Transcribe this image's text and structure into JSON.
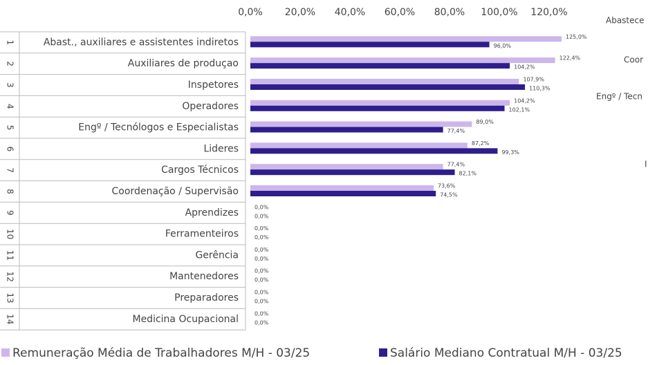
{
  "chart_data": {
    "type": "bar",
    "orientation": "horizontal",
    "row_numbers": [
      1,
      2,
      3,
      4,
      5,
      6,
      7,
      8,
      9,
      10,
      11,
      12,
      13,
      14
    ],
    "categories": [
      "Abast., auxiliares e assistentes indiretos",
      "Auxiliares de produçao",
      "Inspetores",
      "Operadores",
      "Engº / Tecnólogos e Especialistas",
      "Lideres",
      "Cargos Técnicos",
      "Coordenação / Supervisão",
      "Aprendizes",
      "Ferramenteiros",
      "Gerência",
      "Mantenedores",
      "Preparadores",
      "Medicina Ocupacional"
    ],
    "series": [
      {
        "name": "Remuneração Média de Trabalhadores M/H - 03/25",
        "color": "#cdb6ea",
        "values": [
          125.0,
          122.4,
          107.9,
          104.2,
          89.0,
          87.2,
          77.4,
          73.6,
          0,
          0,
          0,
          0,
          0,
          0
        ],
        "value_labels": [
          "125,0%",
          "122,4%",
          "107,9%",
          "104,2%",
          "89,0%",
          "87,2%",
          "77,4%",
          "73,6%",
          "0,0%",
          "0,0%",
          "0,0%",
          "0,0%",
          "0,0%",
          "0,0%"
        ]
      },
      {
        "name": "Salário Mediano Contratual M/H - 03/25",
        "color": "#2e1d8c",
        "values": [
          96.0,
          104.2,
          110.3,
          102.1,
          77.4,
          99.3,
          82.1,
          74.5,
          0,
          0,
          0,
          0,
          0,
          0
        ],
        "value_labels": [
          "96,0%",
          "104,2%",
          "110,3%",
          "102,1%",
          "77,4%",
          "99,3%",
          "82,1%",
          "74,5%",
          "0,0%",
          "0,0%",
          "0,0%",
          "0,0%",
          "0,0%",
          "0,0%"
        ]
      }
    ],
    "xlim": [
      0,
      140
    ],
    "xticks": [
      {
        "value": 0,
        "label": "0,0%"
      },
      {
        "value": 20,
        "label": "20,0%"
      },
      {
        "value": 40,
        "label": "40,0%"
      },
      {
        "value": 60,
        "label": "60,0%"
      },
      {
        "value": 80,
        "label": "80,0%"
      },
      {
        "value": 100,
        "label": "100,0%"
      },
      {
        "value": 120,
        "label": "120,0%"
      }
    ],
    "clipped_texts": [
      "Abastece",
      "Coor",
      "Engº / Tecn",
      "I"
    ],
    "legend": "bottom"
  }
}
